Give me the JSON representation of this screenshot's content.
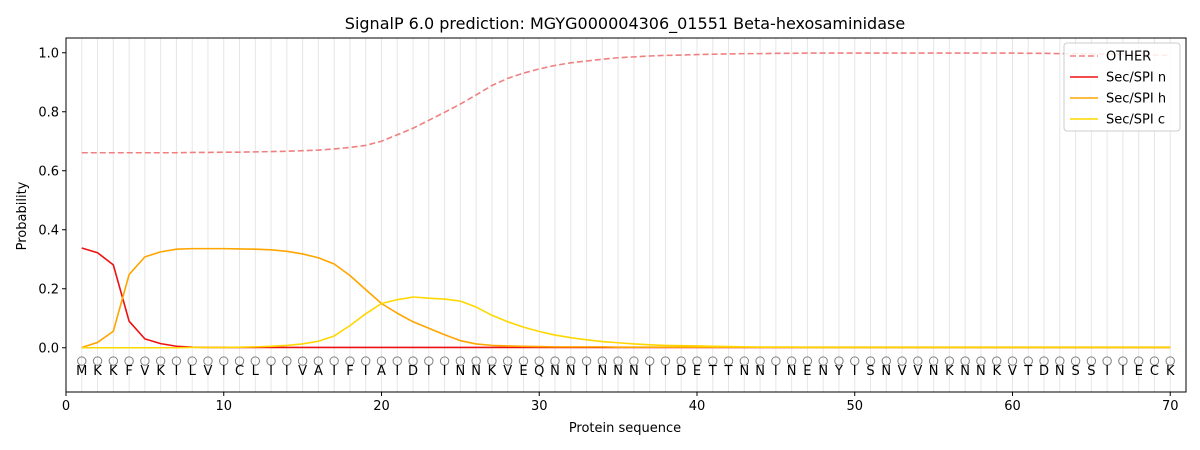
{
  "chart_data": {
    "type": "line",
    "title": "SignalP 6.0 prediction: MGYG000004306_01551 Beta-hexosaminidase",
    "xlabel": "Protein sequence",
    "ylabel": "Probability",
    "xlim": [
      0,
      71
    ],
    "ylim": [
      -0.15,
      1.05
    ],
    "xticks": [
      0,
      10,
      20,
      30,
      40,
      50,
      60,
      70
    ],
    "yticks": [
      0.0,
      0.2,
      0.4,
      0.6,
      0.8,
      1.0
    ],
    "ytick_labels": [
      "0.0",
      "0.2",
      "0.4",
      "0.6",
      "0.8",
      "1.0"
    ],
    "grid": "vertical lines at each residue",
    "legend_position": "top-right",
    "sequence": [
      "M",
      "K",
      "K",
      "F",
      "V",
      "K",
      "I",
      "L",
      "V",
      "I",
      "C",
      "L",
      "I",
      "I",
      "V",
      "A",
      "I",
      "F",
      "I",
      "A",
      "I",
      "D",
      "I",
      "I",
      "N",
      "N",
      "K",
      "V",
      "E",
      "Q",
      "N",
      "N",
      "I",
      "N",
      "N",
      "N",
      "I",
      "I",
      "D",
      "E",
      "T",
      "T",
      "N",
      "N",
      "I",
      "N",
      "E",
      "N",
      "Y",
      "I",
      "S",
      "N",
      "V",
      "V",
      "N",
      "K",
      "N",
      "N",
      "K",
      "V",
      "T",
      "D",
      "N",
      "S",
      "S",
      "I",
      "I",
      "E",
      "C",
      "K"
    ],
    "region_marker": "O",
    "x": [
      1,
      2,
      3,
      4,
      5,
      6,
      7,
      8,
      9,
      10,
      11,
      12,
      13,
      14,
      15,
      16,
      17,
      18,
      19,
      20,
      21,
      22,
      23,
      24,
      25,
      26,
      27,
      28,
      29,
      30,
      31,
      32,
      33,
      34,
      35,
      36,
      37,
      38,
      39,
      40,
      41,
      42,
      43,
      44,
      45,
      46,
      47,
      48,
      49,
      50,
      51,
      52,
      53,
      54,
      55,
      56,
      57,
      58,
      59,
      60,
      61,
      62,
      63,
      64,
      65,
      66,
      67,
      68,
      69,
      70
    ],
    "series": [
      {
        "name": "OTHER",
        "color": "#f08080",
        "dash": true,
        "values": [
          0.661,
          0.661,
          0.661,
          0.661,
          0.661,
          0.661,
          0.661,
          0.662,
          0.662,
          0.663,
          0.663,
          0.664,
          0.665,
          0.666,
          0.668,
          0.67,
          0.674,
          0.679,
          0.686,
          0.7,
          0.722,
          0.744,
          0.771,
          0.798,
          0.826,
          0.857,
          0.889,
          0.913,
          0.931,
          0.945,
          0.957,
          0.966,
          0.972,
          0.978,
          0.983,
          0.986,
          0.989,
          0.991,
          0.992,
          0.994,
          0.995,
          0.996,
          0.997,
          0.997,
          0.998,
          0.998,
          0.999,
          0.999,
          0.999,
          0.999,
          0.999,
          0.999,
          0.999,
          0.999,
          0.999,
          0.999,
          0.999,
          0.999,
          0.999,
          0.999,
          0.998,
          0.998,
          0.997,
          0.997,
          0.996,
          0.995,
          0.994,
          0.993,
          0.992,
          0.991
        ]
      },
      {
        "name": "Sec/SPI n",
        "color": "#ee1111",
        "dash": false,
        "values": [
          0.338,
          0.322,
          0.281,
          0.09,
          0.03,
          0.014,
          0.005,
          0.002,
          0.001,
          0.001,
          0.001,
          0.001,
          0.001,
          0.001,
          0.001,
          0.001,
          0.001,
          0.001,
          0.001,
          0.001,
          0.001,
          0.001,
          0.001,
          0.001,
          0.001,
          0.001,
          0.001,
          0.001,
          0.001,
          0.001,
          0.001,
          0.001,
          0.001,
          0.001,
          0.001,
          0.001,
          0.001,
          0.001,
          0.001,
          0.001,
          0.001,
          0.001,
          0.001,
          0.001,
          0.001,
          0.001,
          0.001,
          0.001,
          0.001,
          0.001,
          0.001,
          0.001,
          0.001,
          0.001,
          0.001,
          0.001,
          0.001,
          0.001,
          0.001,
          0.001,
          0.001,
          0.001,
          0.001,
          0.001,
          0.001,
          0.001,
          0.001,
          0.001,
          0.001,
          0.001
        ]
      },
      {
        "name": "Sec/SPI h",
        "color": "#ffa500",
        "dash": false,
        "values": [
          0.001,
          0.018,
          0.056,
          0.248,
          0.308,
          0.325,
          0.334,
          0.336,
          0.336,
          0.336,
          0.335,
          0.334,
          0.332,
          0.327,
          0.318,
          0.305,
          0.284,
          0.245,
          0.197,
          0.15,
          0.117,
          0.088,
          0.066,
          0.044,
          0.024,
          0.013,
          0.008,
          0.006,
          0.005,
          0.004,
          0.003,
          0.003,
          0.003,
          0.003,
          0.002,
          0.002,
          0.002,
          0.002,
          0.002,
          0.002,
          0.002,
          0.002,
          0.002,
          0.002,
          0.002,
          0.002,
          0.002,
          0.002,
          0.002,
          0.002,
          0.002,
          0.002,
          0.002,
          0.002,
          0.002,
          0.002,
          0.002,
          0.002,
          0.002,
          0.002,
          0.002,
          0.002,
          0.002,
          0.002,
          0.002,
          0.002,
          0.002,
          0.002,
          0.002,
          0.002
        ]
      },
      {
        "name": "Sec/SPI c",
        "color": "#ffd700",
        "dash": false,
        "values": [
          0.0,
          0.0,
          0.0,
          0.0,
          0.0,
          0.0,
          0.0,
          0.001,
          0.001,
          0.001,
          0.002,
          0.003,
          0.005,
          0.008,
          0.013,
          0.022,
          0.04,
          0.075,
          0.115,
          0.15,
          0.163,
          0.172,
          0.168,
          0.165,
          0.158,
          0.138,
          0.11,
          0.088,
          0.07,
          0.055,
          0.043,
          0.034,
          0.027,
          0.021,
          0.017,
          0.013,
          0.01,
          0.008,
          0.007,
          0.006,
          0.005,
          0.004,
          0.003,
          0.002,
          0.002,
          0.002,
          0.001,
          0.001,
          0.001,
          0.001,
          0.001,
          0.001,
          0.001,
          0.001,
          0.001,
          0.001,
          0.001,
          0.001,
          0.001,
          0.001,
          0.001,
          0.001,
          0.001,
          0.001,
          0.001,
          0.001,
          0.001,
          0.001,
          0.001,
          0.001
        ]
      }
    ]
  }
}
